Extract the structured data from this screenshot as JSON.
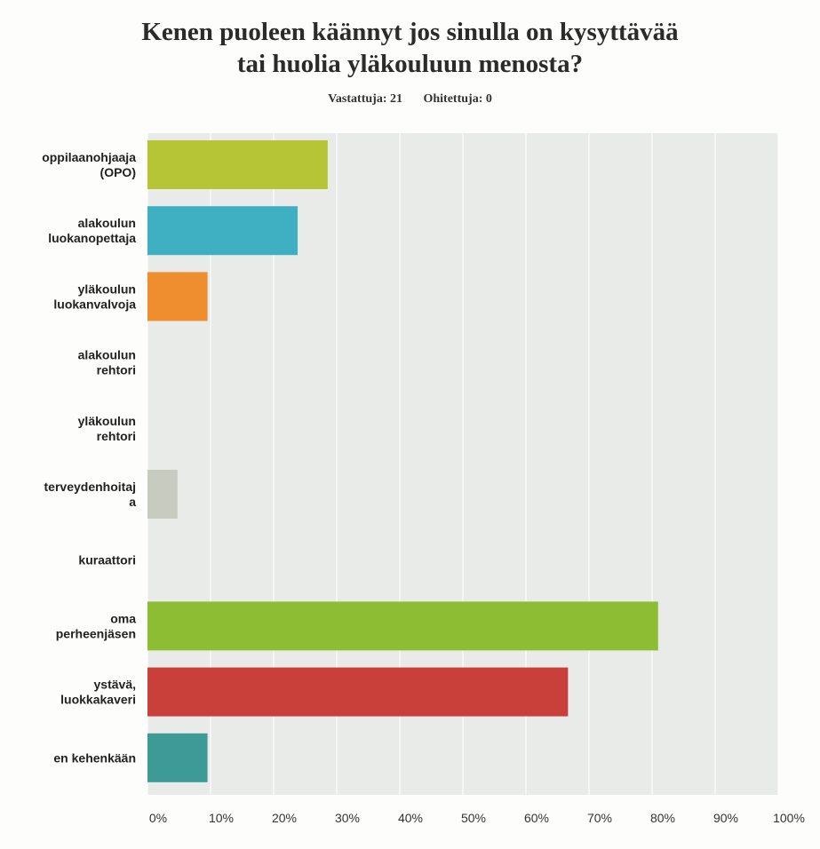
{
  "chart_data": {
    "type": "bar",
    "orientation": "horizontal",
    "title_lines": [
      "Kenen puoleen käännyt jos sinulla on kysyttävää",
      "tai huolia yläkouluun menosta?"
    ],
    "stats": {
      "answered_label": "Vastattuja: 21",
      "skipped_label": "Ohitettuja: 0"
    },
    "categories": [
      [
        "oppilaanohjaaja",
        "(OPO)"
      ],
      [
        "alakoulun",
        "luokanopettaja"
      ],
      [
        "yläkoulun",
        "luokanvalvoja"
      ],
      [
        "alakoulun",
        "rehtori"
      ],
      [
        "yläkoulun",
        "rehtori"
      ],
      [
        "terveydenhoitaj",
        "a"
      ],
      [
        "kuraattori"
      ],
      [
        "oma",
        "perheenjäsen"
      ],
      [
        "ystävä,",
        "luokkakaveri"
      ],
      [
        "en kehenkään"
      ]
    ],
    "values": [
      28.57,
      23.81,
      9.52,
      0,
      0,
      4.76,
      0,
      80.95,
      66.67,
      9.52
    ],
    "colors": [
      "#b5c535",
      "#3fb0c2",
      "#ef8e2f",
      "#999999",
      "#999999",
      "#c8cbbf",
      "#999999",
      "#8cbd33",
      "#c9403a",
      "#3e9a96"
    ],
    "xlim": [
      0,
      100
    ],
    "xticks": [
      0,
      10,
      20,
      30,
      40,
      50,
      60,
      70,
      80,
      90,
      100
    ],
    "tick_labels": [
      "0%",
      "10%",
      "20%",
      "30%",
      "40%",
      "50%",
      "60%",
      "70%",
      "80%",
      "90%",
      "100%"
    ],
    "grid": true,
    "plot_background": "#e9ebe9"
  }
}
